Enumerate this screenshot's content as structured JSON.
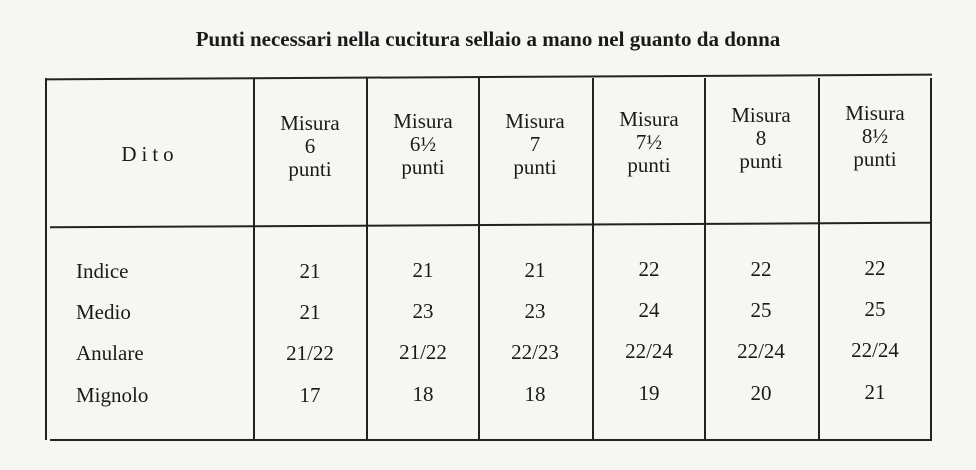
{
  "title": "Punti necessari nella cucitura sellaio a mano nel guanto da donna",
  "table": {
    "corner": "Dito",
    "columns": [
      {
        "line1": "Misura",
        "line2": "6",
        "line3": "punti"
      },
      {
        "line1": "Misura",
        "line2": "6½",
        "line3": "punti"
      },
      {
        "line1": "Misura",
        "line2": "7",
        "line3": "punti"
      },
      {
        "line1": "Misura",
        "line2": "7½",
        "line3": "punti"
      },
      {
        "line1": "Misura",
        "line2": "8",
        "line3": "punti"
      },
      {
        "line1": "Misura",
        "line2": "8½",
        "line3": "punti"
      }
    ],
    "rows": [
      {
        "label": "Indice",
        "values": [
          "21",
          "21",
          "21",
          "22",
          "22",
          "22"
        ]
      },
      {
        "label": "Medio",
        "values": [
          "21",
          "23",
          "23",
          "24",
          "25",
          "25"
        ]
      },
      {
        "label": "Anulare",
        "values": [
          "21/22",
          "21/22",
          "22/23",
          "22/24",
          "22/24",
          "22/24"
        ]
      },
      {
        "label": "Mignolo",
        "values": [
          "17",
          "18",
          "18",
          "19",
          "20",
          "21"
        ]
      }
    ]
  }
}
